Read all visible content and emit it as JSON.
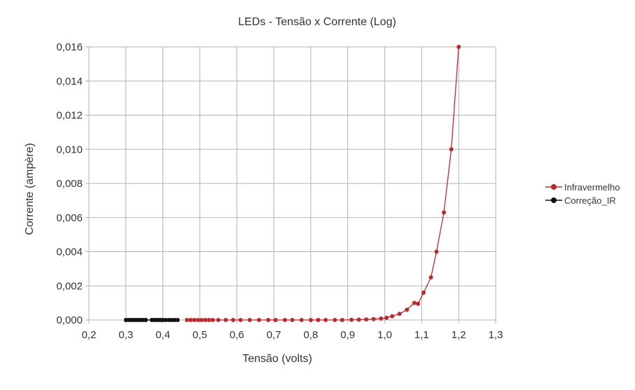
{
  "chart_data": {
    "type": "scatter",
    "title": "LEDs - Tensão x Corrente (Log)",
    "xlabel": "Tensão (volts)",
    "ylabel": "Corrente (ampère)",
    "xlim": [
      0.2,
      1.3
    ],
    "ylim": [
      0,
      0.016
    ],
    "x_ticks": [
      {
        "value": 0.2,
        "label": "0,2"
      },
      {
        "value": 0.3,
        "label": "0,3"
      },
      {
        "value": 0.4,
        "label": "0,4"
      },
      {
        "value": 0.5,
        "label": "0,5"
      },
      {
        "value": 0.6,
        "label": "0,6"
      },
      {
        "value": 0.7,
        "label": "0,7"
      },
      {
        "value": 0.8,
        "label": "0,8"
      },
      {
        "value": 0.9,
        "label": "0,9"
      },
      {
        "value": 1.0,
        "label": "1,0"
      },
      {
        "value": 1.1,
        "label": "1,1"
      },
      {
        "value": 1.2,
        "label": "1,2"
      },
      {
        "value": 1.3,
        "label": "1,3"
      }
    ],
    "y_ticks": [
      {
        "value": 0,
        "label": "0,000"
      },
      {
        "value": 0.002,
        "label": "0,002"
      },
      {
        "value": 0.004,
        "label": "0,004"
      },
      {
        "value": 0.006,
        "label": "0,006"
      },
      {
        "value": 0.008,
        "label": "0,008"
      },
      {
        "value": 0.01,
        "label": "0,010"
      },
      {
        "value": 0.012,
        "label": "0,012"
      },
      {
        "value": 0.014,
        "label": "0,014"
      },
      {
        "value": 0.016,
        "label": "0,016"
      }
    ],
    "grid": true,
    "legend_position": "right",
    "series": [
      {
        "name": "Infravermelho",
        "color": "#c0282d",
        "x": [
          0.465,
          0.475,
          0.485,
          0.495,
          0.505,
          0.515,
          0.525,
          0.535,
          0.55,
          0.57,
          0.59,
          0.61,
          0.635,
          0.66,
          0.685,
          0.705,
          0.73,
          0.75,
          0.775,
          0.8,
          0.82,
          0.84,
          0.865,
          0.885,
          0.91,
          0.93,
          0.95,
          0.97,
          0.99,
          1.005,
          1.02,
          1.04,
          1.06,
          1.08,
          1.09,
          1.105,
          1.125,
          1.14,
          1.16,
          1.18,
          1.2
        ],
        "y": [
          0,
          0,
          0,
          0,
          0,
          0,
          0,
          0,
          0,
          0,
          0,
          0,
          0,
          0,
          0,
          0,
          0,
          0,
          0,
          0,
          0,
          0,
          0,
          0,
          1e-05,
          2e-05,
          3e-05,
          5e-05,
          8e-05,
          0.00013,
          0.00022,
          0.00036,
          0.0006,
          0.001,
          0.00095,
          0.0016,
          0.0025,
          0.004,
          0.0063,
          0.01,
          0.016
        ]
      },
      {
        "name": "Correção_IR",
        "color": "#111111",
        "x": [
          0.3,
          0.306,
          0.312,
          0.318,
          0.324,
          0.33,
          0.336,
          0.342,
          0.348,
          0.354,
          0.37,
          0.376,
          0.382,
          0.388,
          0.394,
          0.4,
          0.408,
          0.416,
          0.424,
          0.432,
          0.44
        ],
        "y": [
          0,
          0,
          0,
          0,
          0,
          0,
          0,
          0,
          0,
          0,
          0,
          0,
          0,
          0,
          0,
          0,
          0,
          0,
          0,
          0,
          0
        ]
      }
    ]
  }
}
